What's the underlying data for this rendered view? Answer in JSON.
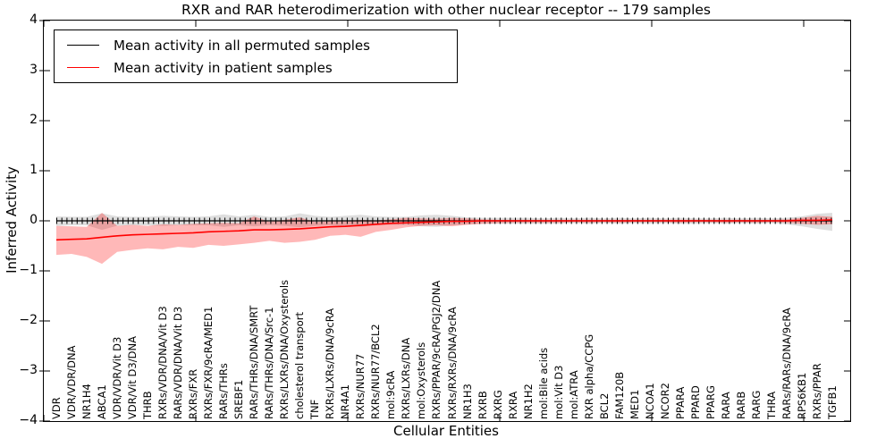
{
  "title": "RXR and RAR heterodimerization with other nuclear receptor -- 179 samples",
  "axes": {
    "x_label": "Cellular Entities",
    "y_label": "Inferred Activity",
    "y_tick_labels": [
      "4",
      "3",
      "2",
      "1",
      "0",
      "−1",
      "−2",
      "−3",
      "−4"
    ]
  },
  "legend": {
    "items": [
      {
        "label": "Mean activity in all permuted samples",
        "color": "#000000"
      },
      {
        "label": "Mean activity in patient samples",
        "color": "#ff0000"
      }
    ],
    "position": "upper left"
  },
  "chart_data": {
    "type": "line",
    "title": "RXR and RAR heterodimerization with other nuclear receptor -- 179 samples",
    "xlabel": "Cellular Entities",
    "ylabel": "Inferred Activity",
    "ylim": [
      -4,
      4
    ],
    "grid": false,
    "legend_position": "upper left",
    "categories": [
      "VDR",
      "VDR/VDR/DNA",
      "NR1H4",
      "ABCA1",
      "VDR/VDR/Vit D3",
      "VDR/Vit D3/DNA",
      "THRB",
      "RXRs/VDR/DNA/Vit D3",
      "RARs/VDR/DNA/Vit D3",
      "RXRs/FXR",
      "RXRs/FXR/9cRA/MED1",
      "RARs/THRs",
      "SREBF1",
      "RARs/THRs/DNA/SMRT",
      "RARs/THRs/DNA/Src-1",
      "RXRs/LXRs/DNA/Oxysterols",
      "cholesterol transport",
      "TNF",
      "RXRs/LXRs/DNA/9cRA",
      "NR4A1",
      "RXRs/NUR77",
      "RXRs/NUR77/BCL2",
      "mol:9cRA",
      "RXRs/LXRs/DNA",
      "mol:Oxysterols",
      "RXRs/PPAR/9cRA/PGJ2/DNA",
      "RXRs/RXRs/DNA/9cRA",
      "NR1H3",
      "RXRB",
      "RXRG",
      "RXRA",
      "NR1H2",
      "mol:Bile acids",
      "mol:Vit D3",
      "mol:ATRA",
      "RXR alpha/CCPG",
      "BCL2",
      "FAM120B",
      "MED1",
      "NCOA1",
      "NCOR2",
      "PPARA",
      "PPARD",
      "PPARG",
      "RARA",
      "RARB",
      "RARG",
      "THRA",
      "RARs/RARs/DNA/9cRA",
      "RPS6KB1",
      "RXRs/PPAR",
      "TGFB1"
    ],
    "series": [
      {
        "name": "Mean activity in all permuted samples",
        "color": "#000000",
        "band_color": "rgba(0,0,0,0.13)",
        "values": [
          0,
          0,
          0,
          0,
          0,
          0,
          0,
          0,
          0,
          0,
          0,
          0,
          0,
          0,
          0,
          0,
          0,
          0,
          0,
          0,
          0,
          0,
          0,
          0,
          0,
          0,
          0,
          0,
          0,
          0,
          0,
          0,
          0,
          0,
          0,
          0,
          0,
          0,
          0,
          0,
          0,
          0,
          0,
          0,
          0,
          0,
          0,
          0,
          0,
          0,
          0,
          0
        ],
        "band_upper": [
          0.09,
          0.08,
          0.08,
          0.15,
          0.09,
          0.08,
          0.08,
          0.1,
          0.09,
          0.08,
          0.09,
          0.13,
          0.09,
          0.12,
          0.08,
          0.09,
          0.15,
          0.1,
          0.08,
          0.1,
          0.12,
          0.09,
          0.08,
          0.08,
          0.11,
          0.12,
          0.1,
          0.07,
          0.06,
          0.06,
          0.06,
          0.06,
          0.05,
          0.06,
          0.05,
          0.06,
          0.05,
          0.06,
          0.05,
          0.06,
          0.05,
          0.06,
          0.05,
          0.05,
          0.06,
          0.05,
          0.06,
          0.05,
          0.06,
          0.09,
          0.14,
          0.16
        ],
        "band_lower": [
          -0.1,
          -0.09,
          -0.09,
          -0.18,
          -0.1,
          -0.09,
          -0.09,
          -0.1,
          -0.09,
          -0.09,
          -0.09,
          -0.12,
          -0.09,
          -0.11,
          -0.09,
          -0.1,
          -0.13,
          -0.1,
          -0.09,
          -0.11,
          -0.12,
          -0.09,
          -0.08,
          -0.08,
          -0.11,
          -0.12,
          -0.09,
          -0.07,
          -0.06,
          -0.06,
          -0.06,
          -0.06,
          -0.06,
          -0.06,
          -0.05,
          -0.06,
          -0.05,
          -0.06,
          -0.05,
          -0.06,
          -0.05,
          -0.06,
          -0.06,
          -0.05,
          -0.06,
          -0.05,
          -0.06,
          -0.05,
          -0.07,
          -0.11,
          -0.16,
          -0.2
        ]
      },
      {
        "name": "Mean activity in patient samples",
        "color": "#ff0000",
        "band_color": "rgba(255,0,0,0.28)",
        "values": [
          -0.38,
          -0.37,
          -0.36,
          -0.33,
          -0.3,
          -0.28,
          -0.27,
          -0.26,
          -0.25,
          -0.24,
          -0.22,
          -0.21,
          -0.2,
          -0.18,
          -0.18,
          -0.17,
          -0.16,
          -0.14,
          -0.12,
          -0.11,
          -0.09,
          -0.07,
          -0.05,
          -0.04,
          -0.03,
          -0.02,
          -0.01,
          -0.01,
          0.0,
          0.0,
          0.0,
          0.0,
          0.0,
          0.0,
          0.0,
          0.0,
          0.0,
          0.0,
          0.0,
          0.0,
          0.0,
          0.0,
          0.0,
          0.0,
          0.0,
          0.0,
          0.0,
          0.0,
          0.0,
          0.01,
          0.01,
          0.02
        ],
        "band_upper": [
          -0.1,
          -0.11,
          -0.12,
          0.16,
          -0.1,
          -0.08,
          -0.1,
          -0.07,
          -0.08,
          -0.06,
          -0.05,
          -0.04,
          -0.05,
          0.09,
          -0.02,
          0.02,
          0.07,
          -0.02,
          -0.01,
          0.0,
          0.02,
          0.01,
          0.03,
          0.06,
          0.05,
          0.04,
          0.06,
          0.05,
          0.03,
          0.02,
          0.02,
          0.02,
          0.02,
          0.02,
          0.02,
          0.02,
          0.02,
          0.02,
          0.02,
          0.02,
          0.02,
          0.02,
          0.02,
          0.02,
          0.02,
          0.02,
          0.02,
          0.02,
          0.03,
          0.06,
          0.1,
          0.08
        ],
        "band_lower": [
          -0.68,
          -0.66,
          -0.72,
          -0.86,
          -0.62,
          -0.58,
          -0.55,
          -0.57,
          -0.52,
          -0.54,
          -0.48,
          -0.5,
          -0.47,
          -0.44,
          -0.4,
          -0.44,
          -0.42,
          -0.38,
          -0.3,
          -0.28,
          -0.32,
          -0.22,
          -0.18,
          -0.13,
          -0.1,
          -0.09,
          -0.11,
          -0.08,
          -0.06,
          -0.05,
          -0.04,
          -0.04,
          -0.04,
          -0.04,
          -0.03,
          -0.04,
          -0.03,
          -0.04,
          -0.03,
          -0.03,
          -0.03,
          -0.04,
          -0.03,
          -0.03,
          -0.04,
          -0.03,
          -0.04,
          -0.03,
          -0.04,
          -0.06,
          -0.08,
          -0.07
        ]
      }
    ]
  }
}
